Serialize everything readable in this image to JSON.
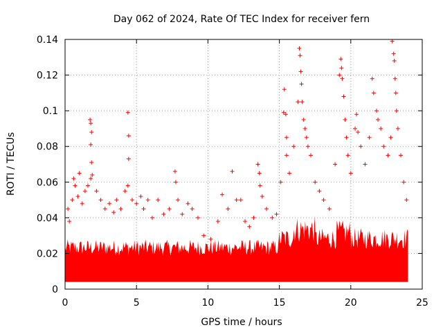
{
  "chart_data": {
    "type": "scatter",
    "title": "Day 062 of 2024, Rate Of TEC Index for receiver fern",
    "xlabel": "GPS time / hours",
    "ylabel": "ROTI / TECUs",
    "xlim": [
      0,
      25
    ],
    "ylim": [
      0,
      0.14
    ],
    "xticks": [
      0,
      5,
      10,
      15,
      20,
      25
    ],
    "yticks": [
      0,
      0.02,
      0.04,
      0.06,
      0.08,
      0.1,
      0.12,
      0.14
    ],
    "xtick_labels": [
      "0",
      "5",
      "10",
      "15",
      "20",
      "25"
    ],
    "ytick_labels": [
      "0",
      "0.02",
      "0.04",
      "0.06",
      "0.08",
      "0.1",
      "0.12",
      "0.14"
    ],
    "grid": true,
    "marker": "+",
    "color": "#ff0000",
    "points": [
      [
        0.2,
        0.045
      ],
      [
        0.3,
        0.038
      ],
      [
        0.5,
        0.05
      ],
      [
        0.6,
        0.062
      ],
      [
        0.7,
        0.058
      ],
      [
        0.9,
        0.052
      ],
      [
        1.0,
        0.065
      ],
      [
        1.2,
        0.048
      ],
      [
        1.4,
        0.055
      ],
      [
        1.6,
        0.058
      ],
      [
        1.75,
        0.095
      ],
      [
        1.8,
        0.093
      ],
      [
        1.85,
        0.088
      ],
      [
        1.8,
        0.081
      ],
      [
        1.85,
        0.071
      ],
      [
        1.9,
        0.064
      ],
      [
        1.8,
        0.062
      ],
      [
        2.2,
        0.055
      ],
      [
        2.5,
        0.05
      ],
      [
        2.8,
        0.045
      ],
      [
        3.1,
        0.048
      ],
      [
        3.4,
        0.043
      ],
      [
        3.6,
        0.05
      ],
      [
        3.9,
        0.045
      ],
      [
        4.2,
        0.055
      ],
      [
        4.4,
        0.099
      ],
      [
        4.45,
        0.086
      ],
      [
        4.45,
        0.073
      ],
      [
        4.4,
        0.058
      ],
      [
        4.7,
        0.05
      ],
      [
        5.0,
        0.048
      ],
      [
        5.3,
        0.052
      ],
      [
        5.5,
        0.045
      ],
      [
        5.8,
        0.05
      ],
      [
        6.1,
        0.04
      ],
      [
        6.5,
        0.05
      ],
      [
        6.9,
        0.042
      ],
      [
        7.3,
        0.045
      ],
      [
        7.7,
        0.066
      ],
      [
        7.75,
        0.06
      ],
      [
        7.9,
        0.05
      ],
      [
        8.2,
        0.042
      ],
      [
        8.6,
        0.048
      ],
      [
        8.9,
        0.045
      ],
      [
        9.3,
        0.04
      ],
      [
        9.7,
        0.03
      ],
      [
        10.2,
        0.028
      ],
      [
        10.7,
        0.038
      ],
      [
        11.0,
        0.053
      ],
      [
        11.4,
        0.045
      ],
      [
        11.7,
        0.066
      ],
      [
        12.0,
        0.05
      ],
      [
        12.3,
        0.05
      ],
      [
        12.6,
        0.038
      ],
      [
        12.9,
        0.035
      ],
      [
        13.2,
        0.04
      ],
      [
        13.5,
        0.07
      ],
      [
        13.6,
        0.065
      ],
      [
        13.65,
        0.058
      ],
      [
        13.8,
        0.052
      ],
      [
        14.1,
        0.045
      ],
      [
        14.5,
        0.04
      ],
      [
        14.8,
        0.042
      ],
      [
        15.1,
        0.06
      ],
      [
        15.3,
        0.099
      ],
      [
        15.35,
        0.112
      ],
      [
        15.45,
        0.098
      ],
      [
        15.5,
        0.085
      ],
      [
        15.5,
        0.075
      ],
      [
        15.7,
        0.065
      ],
      [
        16.0,
        0.08
      ],
      [
        16.3,
        0.105
      ],
      [
        16.4,
        0.135
      ],
      [
        16.45,
        0.131
      ],
      [
        16.5,
        0.122
      ],
      [
        16.55,
        0.115
      ],
      [
        16.6,
        0.105
      ],
      [
        16.7,
        0.095
      ],
      [
        16.8,
        0.09
      ],
      [
        16.9,
        0.085
      ],
      [
        17.0,
        0.08
      ],
      [
        17.2,
        0.075
      ],
      [
        17.5,
        0.06
      ],
      [
        17.8,
        0.055
      ],
      [
        18.1,
        0.05
      ],
      [
        18.5,
        0.045
      ],
      [
        18.9,
        0.07
      ],
      [
        19.2,
        0.12
      ],
      [
        19.3,
        0.129
      ],
      [
        19.35,
        0.124
      ],
      [
        19.4,
        0.118
      ],
      [
        19.5,
        0.108
      ],
      [
        19.6,
        0.095
      ],
      [
        19.7,
        0.085
      ],
      [
        19.8,
        0.075
      ],
      [
        20.0,
        0.065
      ],
      [
        20.3,
        0.09
      ],
      [
        20.4,
        0.098
      ],
      [
        20.5,
        0.088
      ],
      [
        20.7,
        0.08
      ],
      [
        21.0,
        0.07
      ],
      [
        21.3,
        0.085
      ],
      [
        21.5,
        0.118
      ],
      [
        21.6,
        0.11
      ],
      [
        21.8,
        0.1
      ],
      [
        21.9,
        0.095
      ],
      [
        22.1,
        0.09
      ],
      [
        22.3,
        0.08
      ],
      [
        22.6,
        0.075
      ],
      [
        22.8,
        0.085
      ],
      [
        22.9,
        0.139
      ],
      [
        23.0,
        0.132
      ],
      [
        23.05,
        0.128
      ],
      [
        23.1,
        0.118
      ],
      [
        23.15,
        0.11
      ],
      [
        23.2,
        0.1
      ],
      [
        23.3,
        0.09
      ],
      [
        23.5,
        0.075
      ],
      [
        23.7,
        0.06
      ],
      [
        23.9,
        0.05
      ]
    ]
  }
}
